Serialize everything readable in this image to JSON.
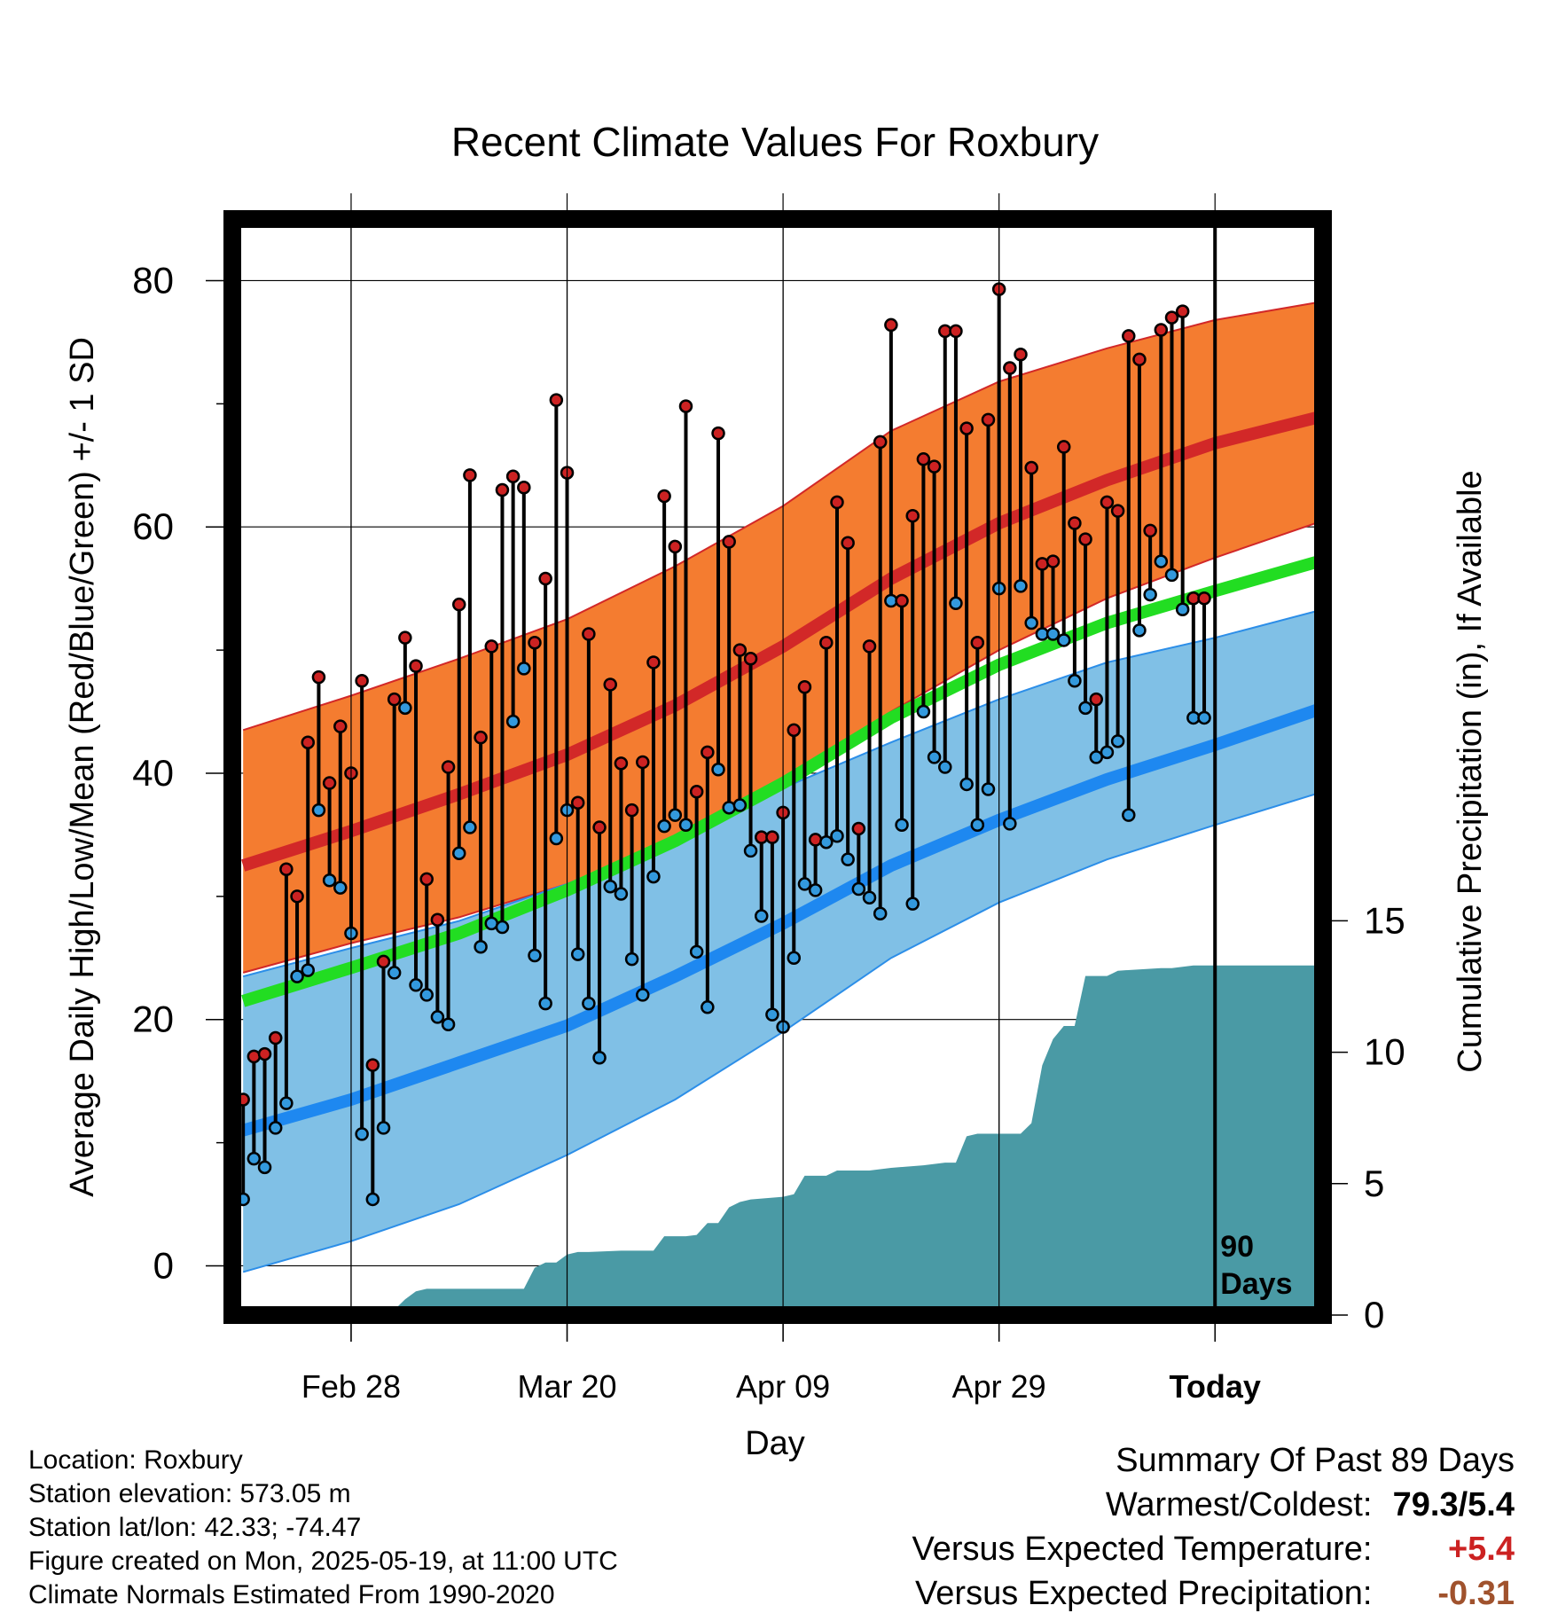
{
  "chart_data": {
    "type": "line",
    "title": "Recent Climate Values For Roxbury",
    "xlabel": "Day",
    "ylabel": "Average Daily High/Low/Mean (Red/Blue/Green) +/- 1 SD",
    "y2label": "Cumulative Precipitation (in), If Available",
    "ylim": [
      -4,
      85
    ],
    "y2lim": [
      0,
      41.7
    ],
    "yticks": [
      0,
      20,
      40,
      60,
      80
    ],
    "y2ticks": [
      0,
      5,
      10,
      15
    ],
    "xlim": [
      -11,
      90
    ],
    "xtick_positions": [
      0,
      20,
      40,
      60,
      80
    ],
    "xtick_labels": [
      "Feb 28",
      "Mar 20",
      "Apr 09",
      "Apr 29",
      "Today"
    ],
    "grid": true,
    "today_day": 80,
    "today_marker_label_line1": "90",
    "today_marker_label_line2": "Days",
    "normals": {
      "days": [
        -10,
        0,
        10,
        20,
        30,
        40,
        50,
        60,
        70,
        80,
        90
      ],
      "high_mean": [
        32.5,
        35.3,
        38.3,
        41.5,
        45.5,
        50.3,
        55.8,
        60.3,
        63.8,
        66.8,
        69.0
      ],
      "high_upper": [
        43.5,
        46.3,
        49.3,
        52.5,
        56.8,
        61.7,
        67.8,
        71.8,
        74.5,
        76.8,
        78.3
      ],
      "high_lower": [
        23.8,
        26.2,
        28.3,
        31.0,
        34.5,
        39.2,
        45.0,
        50.0,
        54.2,
        57.5,
        60.5
      ],
      "mean": [
        21.5,
        24.2,
        27.0,
        30.5,
        34.5,
        39.2,
        44.5,
        48.8,
        52.2,
        54.8,
        57.3
      ],
      "low_mean": [
        11.0,
        13.5,
        16.5,
        19.5,
        23.5,
        27.8,
        32.5,
        36.2,
        39.5,
        42.3,
        45.3
      ],
      "low_upper": [
        23.5,
        25.8,
        28.0,
        31.0,
        34.7,
        38.8,
        42.5,
        46.0,
        49.0,
        51.0,
        53.3
      ],
      "low_lower": [
        -0.5,
        2.0,
        5.0,
        9.0,
        13.5,
        19.0,
        25.0,
        29.5,
        33.0,
        35.8,
        38.5
      ]
    },
    "series": [
      {
        "name": "High",
        "color": "#cc2222",
        "days": [
          -10,
          -9,
          -8,
          -7,
          -6,
          -5,
          -4,
          -3,
          -2,
          -1,
          0,
          1,
          2,
          3,
          4,
          5,
          6,
          7,
          8,
          9,
          10,
          11,
          12,
          13,
          14,
          15,
          16,
          17,
          18,
          19,
          20,
          21,
          22,
          23,
          24,
          25,
          26,
          27,
          28,
          29,
          30,
          31,
          32,
          33,
          34,
          35,
          36,
          37,
          38,
          39,
          40,
          41,
          42,
          43,
          44,
          45,
          46,
          47,
          48,
          49,
          50,
          51,
          52,
          53,
          54,
          55,
          56,
          57,
          58,
          59,
          60,
          61,
          62,
          63,
          64,
          65,
          66,
          67,
          68,
          69,
          70,
          71,
          72,
          73,
          74,
          75,
          76,
          77,
          78,
          79
        ],
        "values": [
          13.5,
          17.0,
          17.2,
          18.5,
          32.2,
          30.0,
          42.5,
          47.8,
          39.2,
          43.8,
          40.0,
          47.5,
          16.3,
          24.7,
          46.0,
          51.0,
          48.7,
          31.4,
          28.1,
          40.5,
          53.7,
          64.2,
          42.9,
          50.3,
          63.0,
          64.1,
          63.2,
          50.6,
          55.8,
          70.3,
          64.4,
          37.6,
          51.3,
          35.6,
          47.2,
          40.8,
          37.0,
          40.9,
          49.0,
          62.5,
          58.4,
          69.8,
          38.5,
          41.7,
          67.6,
          58.8,
          50.0,
          49.3,
          34.8,
          34.8,
          36.8,
          43.5,
          47.0,
          34.6,
          50.6,
          62.0,
          58.7,
          35.5,
          50.3,
          66.9,
          76.4,
          54.0,
          60.9,
          65.5,
          64.9,
          75.9,
          75.9,
          68.0,
          50.6,
          68.7,
          79.3,
          72.9,
          74.0,
          64.8,
          57.0,
          57.2,
          66.5,
          60.3,
          59.0,
          46.0,
          62.0,
          61.3,
          75.5,
          73.6,
          59.7,
          76.0,
          77.0,
          77.5,
          54.2,
          54.2
        ]
      },
      {
        "name": "Low",
        "color": "#3399dd",
        "days": [
          -10,
          -9,
          -8,
          -7,
          -6,
          -5,
          -4,
          -3,
          -2,
          -1,
          0,
          1,
          2,
          3,
          4,
          5,
          6,
          7,
          8,
          9,
          10,
          11,
          12,
          13,
          14,
          15,
          16,
          17,
          18,
          19,
          20,
          21,
          22,
          23,
          24,
          25,
          26,
          27,
          28,
          29,
          30,
          31,
          32,
          33,
          34,
          35,
          36,
          37,
          38,
          39,
          40,
          41,
          42,
          43,
          44,
          45,
          46,
          47,
          48,
          49,
          50,
          51,
          52,
          53,
          54,
          55,
          56,
          57,
          58,
          59,
          60,
          61,
          62,
          63,
          64,
          65,
          66,
          67,
          68,
          69,
          70,
          71,
          72,
          73,
          74,
          75,
          76,
          77,
          78,
          79
        ],
        "values": [
          5.4,
          8.7,
          8.0,
          11.2,
          13.2,
          23.5,
          24.0,
          37.0,
          31.3,
          30.7,
          27.0,
          10.7,
          5.4,
          11.2,
          23.8,
          45.3,
          22.8,
          22.0,
          20.2,
          19.6,
          33.5,
          35.6,
          25.9,
          27.8,
          27.5,
          44.2,
          48.5,
          25.2,
          21.3,
          34.7,
          37.0,
          25.3,
          21.3,
          16.9,
          30.8,
          30.2,
          24.9,
          22.0,
          31.6,
          35.7,
          36.6,
          35.8,
          25.5,
          21.0,
          40.3,
          37.2,
          37.4,
          33.7,
          28.4,
          20.4,
          19.4,
          25.0,
          31.0,
          30.5,
          34.4,
          34.9,
          33.0,
          30.6,
          29.9,
          28.6,
          54.0,
          35.8,
          29.4,
          45.0,
          41.3,
          40.5,
          53.8,
          39.1,
          35.8,
          38.7,
          55.0,
          35.9,
          55.2,
          52.2,
          51.3,
          51.3,
          50.8,
          47.5,
          45.3,
          41.3,
          41.7,
          42.6,
          36.6,
          51.6,
          54.5,
          57.2,
          56.1,
          53.3,
          44.5,
          44.5
        ]
      }
    ],
    "precipitation": {
      "name": "Cumulative Precipitation",
      "color": "#4a9aa5",
      "days": [
        -10,
        -3,
        0,
        2,
        4,
        5,
        6,
        7,
        8,
        10,
        12,
        14,
        15,
        16,
        17,
        18,
        19,
        20,
        21,
        22,
        25,
        28,
        29,
        31,
        32,
        33,
        34,
        35,
        36,
        37,
        40,
        41,
        42,
        44,
        45,
        48,
        50,
        53,
        55,
        56,
        57,
        58,
        59,
        62,
        63,
        64,
        65,
        66,
        67,
        68,
        70,
        70.5,
        71,
        75,
        76,
        78,
        80,
        90
      ],
      "values": [
        0,
        0,
        0.1,
        0.2,
        0.2,
        0.6,
        0.9,
        1.0,
        1.0,
        1.0,
        1.0,
        1.0,
        1.0,
        1.0,
        1.8,
        2.0,
        2.0,
        2.3,
        2.4,
        2.4,
        2.45,
        2.45,
        3.0,
        3.0,
        3.05,
        3.5,
        3.5,
        4.1,
        4.3,
        4.4,
        4.5,
        4.6,
        5.3,
        5.3,
        5.5,
        5.5,
        5.6,
        5.7,
        5.8,
        5.8,
        6.8,
        6.9,
        6.9,
        6.9,
        7.3,
        9.5,
        10.5,
        11.0,
        11.0,
        12.9,
        12.9,
        13.0,
        13.1,
        13.2,
        13.2,
        13.3,
        13.3,
        13.3
      ]
    }
  },
  "info": {
    "location": "Location: Roxbury",
    "elevation": "Station elevation: 573.05 m",
    "latlon": "Station lat/lon: 42.33; -74.47",
    "created": "Figure created on Mon, 2025-05-19, at 11:00 UTC",
    "normals": "Climate Normals Estimated From 1990-2020"
  },
  "summary": {
    "heading": "Summary Of Past 89 Days",
    "warm_cold_label": "Warmest/Coldest:",
    "warm_cold_value": "79.3/5.4",
    "temp_label": "Versus Expected Temperature:",
    "temp_value": "+5.4",
    "temp_color": "#cc2222",
    "precip_label": "Versus Expected Precipitation:",
    "precip_value": "-0.31",
    "precip_color": "#a0522d"
  }
}
